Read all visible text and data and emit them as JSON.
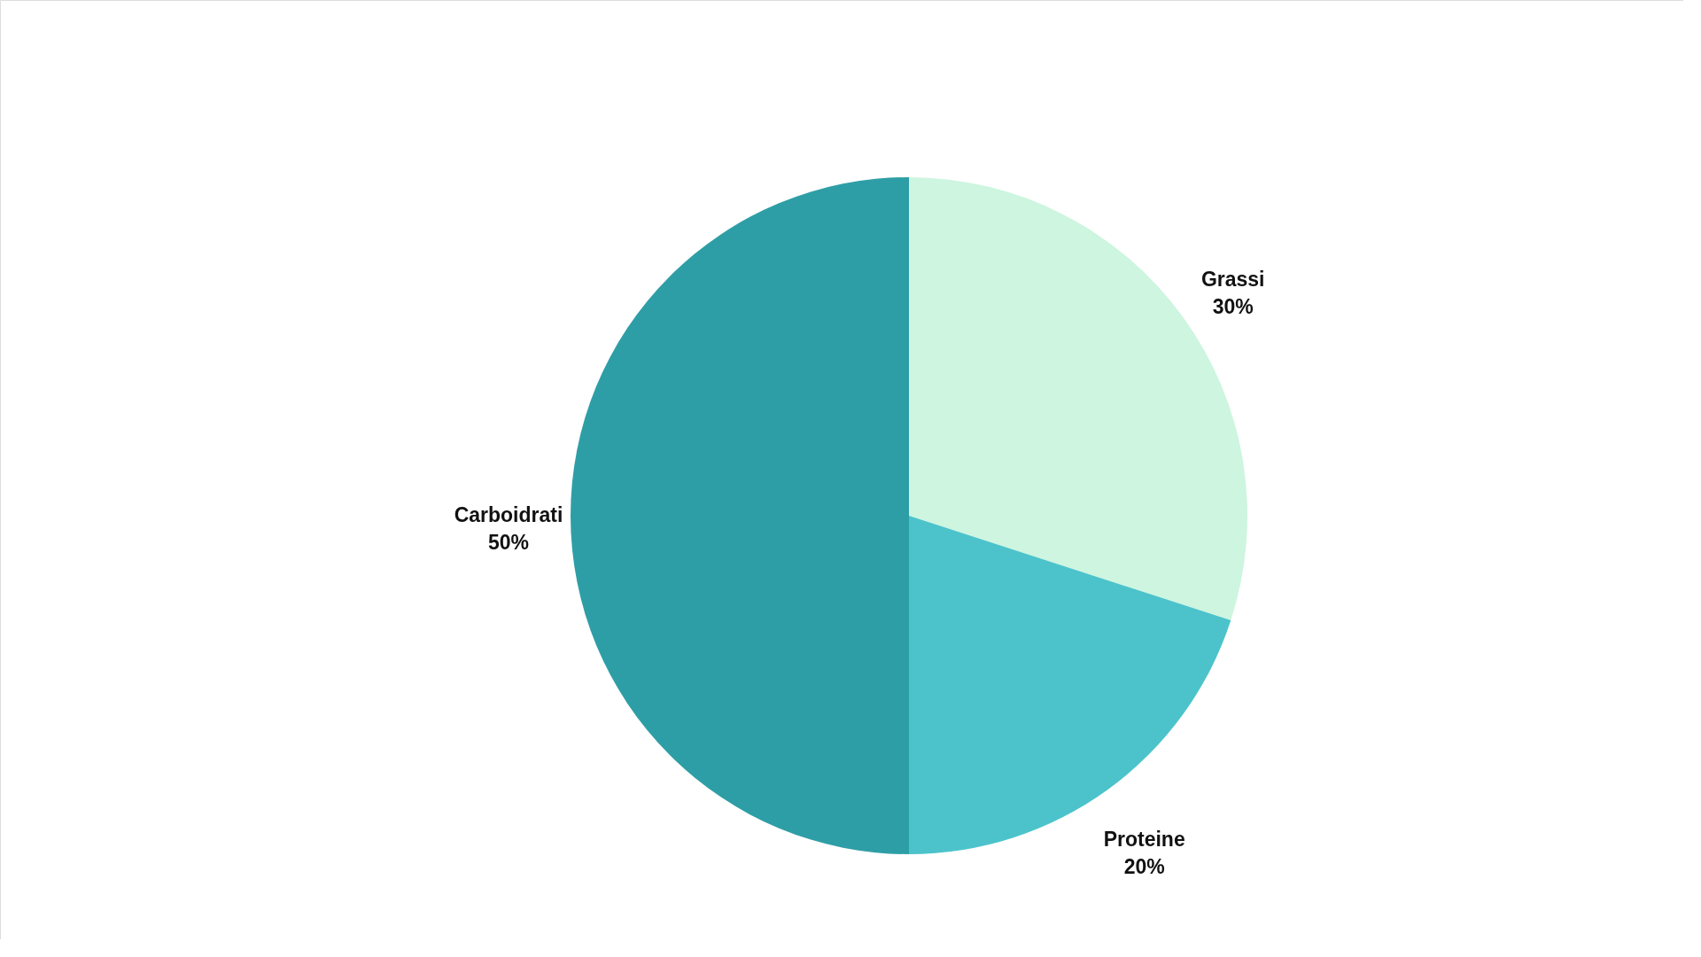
{
  "chart_data": {
    "type": "pie",
    "categories": [
      "Grassi",
      "Proteine",
      "Carboidrati"
    ],
    "values": [
      30,
      20,
      50
    ],
    "colors": [
      "#cdf5e0",
      "#4cc3cb",
      "#2e9ea6"
    ],
    "value_labels": [
      "30%",
      "20%",
      "50%"
    ]
  }
}
